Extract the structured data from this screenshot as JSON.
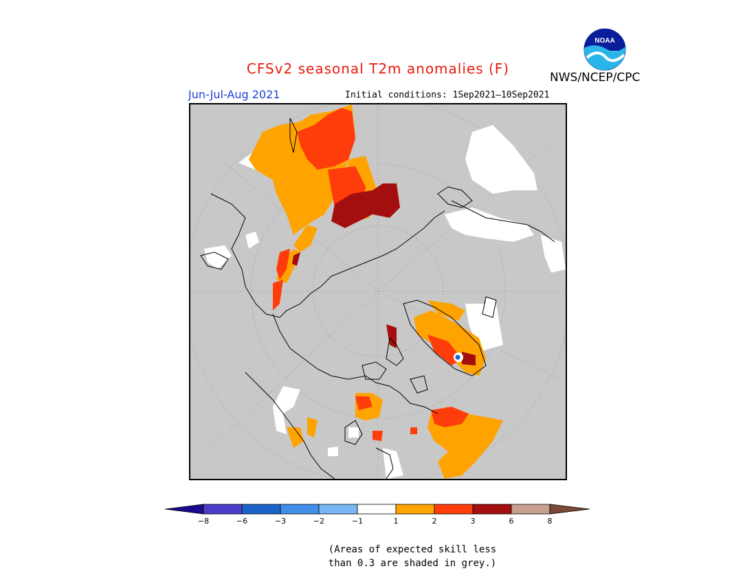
{
  "title": "CFSv2 seasonal T2m anomalies (F)",
  "period": "Jun-Jul-Aug 2021",
  "initial_conditions": "Initial conditions: 1Sep2021–10Sep2021",
  "agency": "NWS/NCEP/CPC",
  "logo_text": "NOAA",
  "map": {
    "projection": "north-polar-stereographic",
    "masked_color": "#c8c8c8",
    "ocean_color": "#c8c8c8"
  },
  "colorbar": {
    "ticks": [
      "−8",
      "−6",
      "−3",
      "−2",
      "−1",
      "1",
      "2",
      "3",
      "6",
      "8"
    ],
    "colors": [
      "#1a0b8c",
      "#4a3ec8",
      "#1c63c9",
      "#3f8fe8",
      "#79b6f2",
      "#ffffff",
      "#ffa300",
      "#ff3d0a",
      "#a30e0e",
      "#c7a08f",
      "#7a4a37"
    ]
  },
  "note": {
    "line1": "(Areas of expected skill less",
    "line2": "than 0.3 are shaded in grey.)"
  }
}
